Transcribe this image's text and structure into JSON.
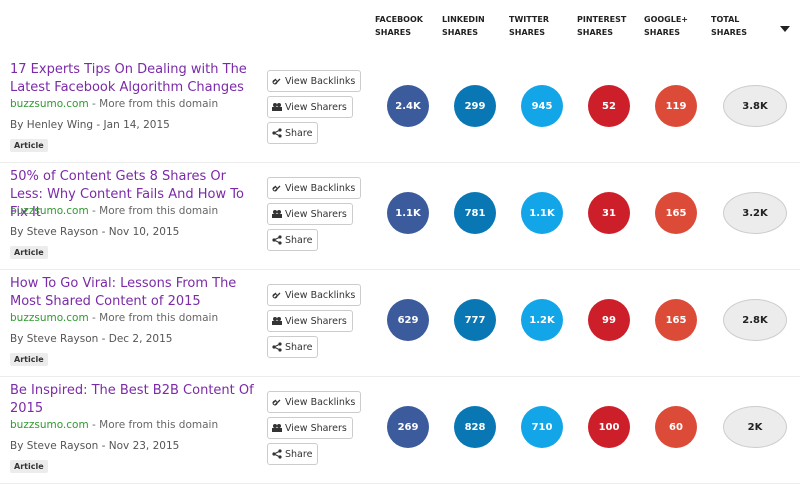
{
  "header": {
    "columns": [
      "FACEBOOK SHARES",
      "LINKEDIN SHARES",
      "TWITTER SHARES",
      "PINTEREST SHARES",
      "GOOGLE+ SHARES",
      "TOTAL SHARES"
    ]
  },
  "rows": [
    {
      "title": "17 Experts Tips On Dealing with The Latest Facebook Algorithm Changes",
      "domain": "buzzsumo.com",
      "more": "- More from this domain",
      "byline": "By Henley Wing - Jan 14, 2015",
      "tag": "Article",
      "actions": [
        "View Backlinks",
        "View Sharers",
        "Share"
      ],
      "shares": [
        "2.4K",
        "299",
        "945",
        "52",
        "119",
        "3.8K"
      ]
    },
    {
      "title": "50% of Content Gets 8 Shares Or Less: Why Content Fails And How To Fix It",
      "domain": "buzzsumo.com",
      "more": "- More from this domain",
      "byline": "By Steve Rayson - Nov 10, 2015",
      "tag": "Article",
      "actions": [
        "View Backlinks",
        "View Sharers",
        "Share"
      ],
      "shares": [
        "1.1K",
        "781",
        "1.1K",
        "31",
        "165",
        "3.2K"
      ]
    },
    {
      "title": "How To Go Viral: Lessons From The Most Shared Content of 2015",
      "domain": "buzzsumo.com",
      "more": "- More from this domain",
      "byline": "By Steve Rayson - Dec 2, 2015",
      "tag": "Article",
      "actions": [
        "View Backlinks",
        "View Sharers",
        "Share"
      ],
      "shares": [
        "629",
        "777",
        "1.2K",
        "99",
        "165",
        "2.8K"
      ]
    },
    {
      "title": "Be Inspired: The Best B2B Content Of 2015",
      "domain": "buzzsumo.com",
      "more": "- More from this domain",
      "byline": "By Steve Rayson - Nov 23, 2015",
      "tag": "Article",
      "actions": [
        "View Backlinks",
        "View Sharers",
        "Share"
      ],
      "shares": [
        "269",
        "828",
        "710",
        "100",
        "60",
        "2K"
      ]
    }
  ]
}
